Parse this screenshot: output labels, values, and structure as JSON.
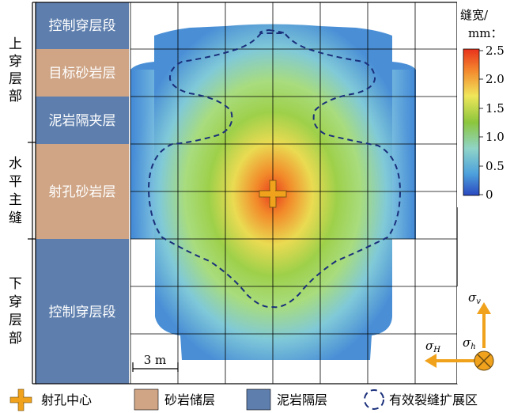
{
  "side_labels": {
    "upper": [
      "上",
      "穿",
      "层",
      "部"
    ],
    "middle": [
      "水",
      "平",
      "主",
      "缝"
    ],
    "lower": [
      "下",
      "穿",
      "层",
      "部"
    ]
  },
  "zones": [
    {
      "label": "控制穿层段",
      "type": "mudstone"
    },
    {
      "label": "目标砂岩层",
      "type": "sandstone"
    },
    {
      "label": "泥岩隔夹层",
      "type": "mudstone"
    },
    {
      "label": "射孔砂岩层",
      "type": "sandstone"
    },
    {
      "label": "控制穿层段",
      "type": "mudstone"
    }
  ],
  "colorbar": {
    "title_line1": "缝宽/",
    "title_line2": "mm：",
    "ticks": [
      "2.5",
      "2.0",
      "1.5",
      "1.0",
      "0.5",
      "0"
    ]
  },
  "scale_bar": "3 m",
  "stress": {
    "sigma_v": "σ",
    "sigma_v_sub": "v",
    "sigma_h_max": "σ",
    "sigma_h_max_sub": "H",
    "sigma_h_min": "σ",
    "sigma_h_min_sub": "h"
  },
  "legend": [
    {
      "label": "射孔中心",
      "kind": "perforation"
    },
    {
      "label": "砂岩储层",
      "kind": "sandstone"
    },
    {
      "label": "泥岩隔层",
      "kind": "mudstone"
    },
    {
      "label": "有效裂缝扩展区",
      "kind": "effective-zone"
    }
  ],
  "colors": {
    "sandstone": "#cfa586",
    "mudstone": "#5e7fae",
    "perforation": "#f0a21c",
    "contour": "#1a2f7a"
  }
}
